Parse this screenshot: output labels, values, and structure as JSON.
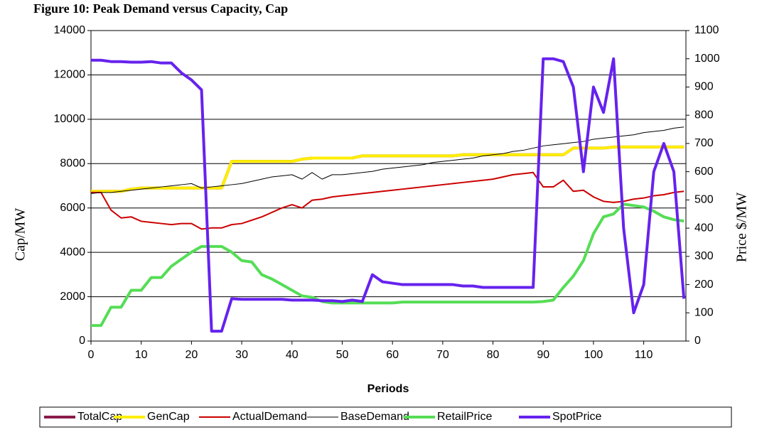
{
  "chart_data": {
    "type": "line",
    "title": "Figure 10: Peak Demand versus Capacity, Cap",
    "x_label": "Periods",
    "y_label": "Cap/MW",
    "y2_label": "Price $/MW",
    "x": [
      0,
      2,
      4,
      6,
      8,
      10,
      12,
      14,
      16,
      18,
      20,
      22,
      24,
      26,
      28,
      30,
      32,
      34,
      36,
      38,
      40,
      42,
      44,
      46,
      48,
      50,
      52,
      54,
      56,
      58,
      60,
      62,
      64,
      66,
      68,
      70,
      72,
      74,
      76,
      78,
      80,
      82,
      84,
      86,
      88,
      90,
      92,
      94,
      96,
      98,
      100,
      102,
      104,
      106,
      108,
      110,
      112,
      114,
      116,
      118
    ],
    "xlim": [
      0,
      118.4
    ],
    "xticks": [
      0,
      10,
      20,
      30,
      40,
      50,
      60,
      70,
      80,
      90,
      100,
      110
    ],
    "ylim": [
      0,
      14000
    ],
    "yticks": [
      0,
      2000,
      4000,
      6000,
      8000,
      10000,
      12000,
      14000
    ],
    "y2lim": [
      0,
      1100
    ],
    "y2ticks": [
      0,
      100,
      200,
      300,
      400,
      500,
      600,
      700,
      800,
      900,
      1000,
      1100
    ],
    "grid": true,
    "legend": "bottom",
    "series": [
      {
        "name": "TotalCap",
        "color": "#8b1a4a",
        "values": [
          6750,
          6750,
          6750,
          6750,
          6850,
          6900,
          6900,
          6900,
          6900,
          6900,
          6900,
          6900,
          6900,
          6900,
          8100,
          8100,
          8100,
          8100,
          8100,
          8100,
          8100,
          8200,
          8250,
          8250,
          8250,
          8250,
          8250,
          8350,
          8350,
          8350,
          8350,
          8350,
          8350,
          8350,
          8350,
          8350,
          8350,
          8400,
          8400,
          8400,
          8400,
          8400,
          8400,
          8400,
          8400,
          8400,
          8400,
          8400,
          8700,
          8700,
          8700,
          8700,
          8750,
          8750,
          8750,
          8750,
          8750,
          8750,
          8750,
          8750
        ]
      },
      {
        "name": "GenCap",
        "color": "#ffee00",
        "values": [
          6750,
          6750,
          6750,
          6750,
          6850,
          6900,
          6900,
          6900,
          6900,
          6900,
          6900,
          6900,
          6900,
          6900,
          8100,
          8100,
          8100,
          8100,
          8100,
          8100,
          8100,
          8200,
          8250,
          8250,
          8250,
          8250,
          8250,
          8350,
          8350,
          8350,
          8350,
          8350,
          8350,
          8350,
          8350,
          8350,
          8350,
          8400,
          8400,
          8400,
          8400,
          8400,
          8400,
          8400,
          8400,
          8400,
          8400,
          8400,
          8700,
          8700,
          8700,
          8700,
          8750,
          8750,
          8750,
          8750,
          8750,
          8750,
          8750,
          8750
        ]
      },
      {
        "name": "ActualDemand",
        "color": "#cc0000",
        "values": [
          6700,
          6700,
          5900,
          5550,
          5600,
          5400,
          5350,
          5300,
          5250,
          5300,
          5300,
          5050,
          5100,
          5100,
          5250,
          5300,
          5450,
          5600,
          5800,
          6000,
          6150,
          6000,
          6350,
          6400,
          6500,
          6550,
          6600,
          6650,
          6700,
          6750,
          6800,
          6850,
          6900,
          6950,
          7000,
          7050,
          7100,
          7150,
          7200,
          7250,
          7300,
          7400,
          7500,
          7550,
          7600,
          6950,
          6950,
          7250,
          6750,
          6800,
          6500,
          6300,
          6250,
          6300,
          6400,
          6450,
          6550,
          6600,
          6700,
          6750
        ]
      },
      {
        "name": "BaseDemand",
        "color": "#000000",
        "values": [
          6650,
          6700,
          6700,
          6750,
          6800,
          6850,
          6900,
          6950,
          7000,
          7050,
          7100,
          6900,
          6950,
          7000,
          7050,
          7100,
          7200,
          7300,
          7400,
          7450,
          7500,
          7300,
          7600,
          7300,
          7500,
          7500,
          7550,
          7600,
          7650,
          7750,
          7800,
          7850,
          7900,
          7950,
          8050,
          8100,
          8150,
          8200,
          8250,
          8350,
          8400,
          8450,
          8550,
          8600,
          8700,
          8800,
          8850,
          8900,
          8950,
          9000,
          9100,
          9150,
          9200,
          9250,
          9300,
          9400,
          9450,
          9500,
          9600,
          9650
        ]
      },
      {
        "name": "RetailPrice",
        "color": "#55dd55",
        "axis": "y2",
        "values": [
          55,
          55,
          120,
          120,
          180,
          180,
          225,
          225,
          265,
          290,
          315,
          335,
          335,
          335,
          315,
          285,
          280,
          235,
          220,
          200,
          180,
          160,
          155,
          140,
          135,
          135,
          135,
          135,
          135,
          135,
          135,
          138,
          138,
          138,
          138,
          138,
          138,
          138,
          138,
          138,
          138,
          138,
          138,
          138,
          138,
          140,
          145,
          190,
          230,
          285,
          380,
          440,
          450,
          485,
          480,
          475,
          460,
          440,
          430,
          425
        ]
      },
      {
        "name": "SpotPrice",
        "color": "#6622ee",
        "axis": "y2",
        "values": [
          995,
          995,
          990,
          990,
          988,
          988,
          990,
          985,
          985,
          950,
          925,
          890,
          35,
          35,
          150,
          148,
          148,
          148,
          148,
          148,
          145,
          145,
          145,
          143,
          143,
          140,
          145,
          140,
          235,
          210,
          205,
          200,
          200,
          200,
          200,
          200,
          200,
          195,
          195,
          190,
          190,
          190,
          190,
          190,
          190,
          1000,
          1000,
          990,
          900,
          600,
          900,
          810,
          1000,
          400,
          100,
          200,
          600,
          700,
          600,
          150
        ]
      }
    ]
  }
}
